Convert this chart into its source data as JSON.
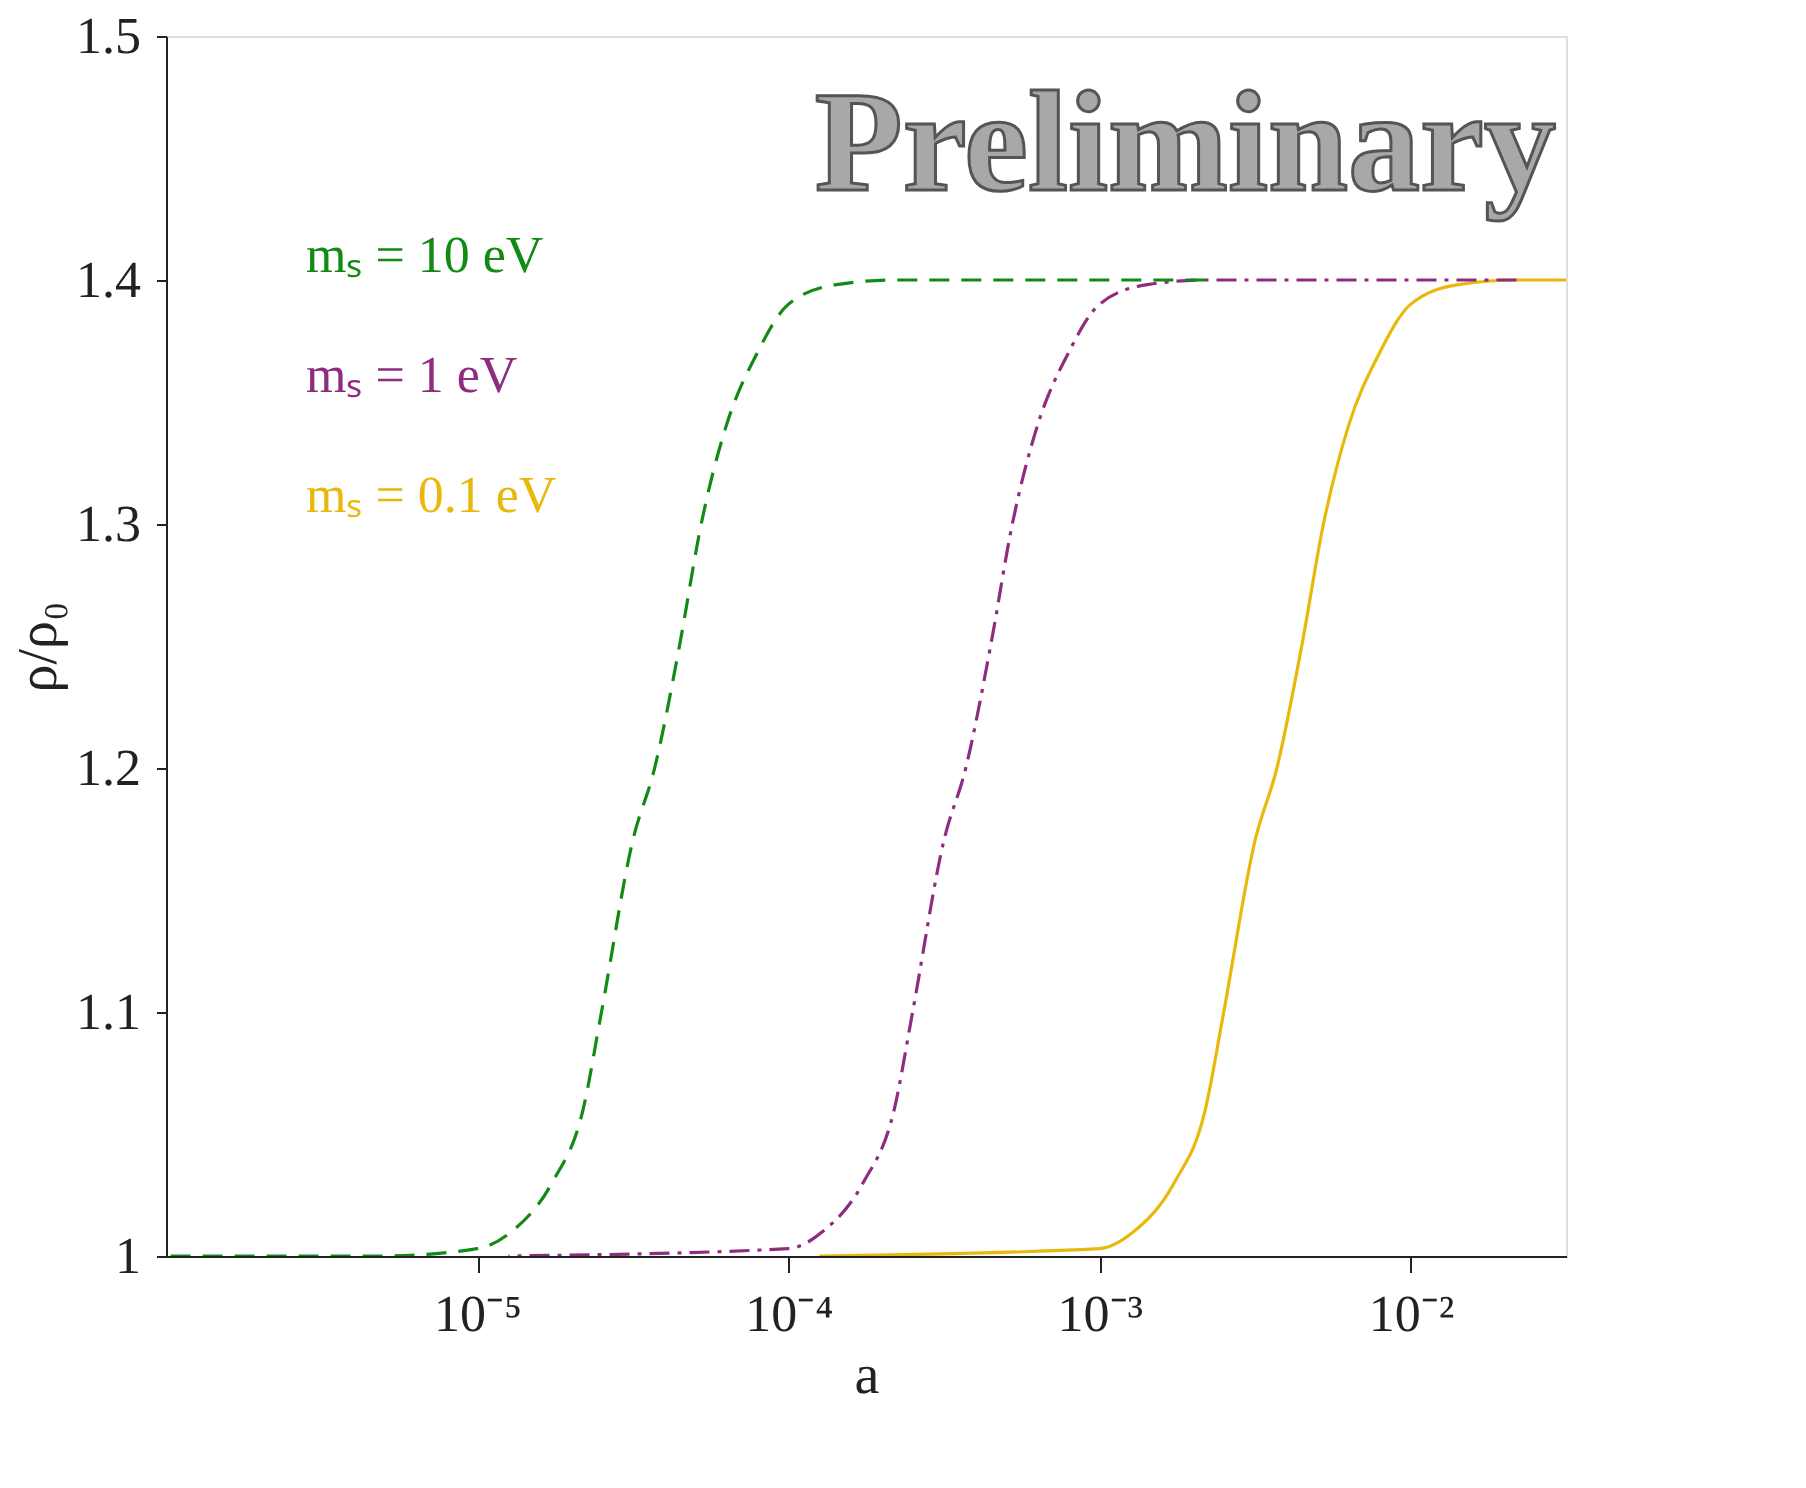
{
  "chart_data": {
    "type": "line",
    "xlabel": "a",
    "ylabel": "ρ/ρ₀",
    "log": "x",
    "xlim": [
      1e-06,
      0.0316
    ],
    "xticks": [
      {
        "value": 1e-05,
        "label": "10⁻⁵"
      },
      {
        "value": 0.0001,
        "label": "10⁻⁴"
      },
      {
        "value": 0.001,
        "label": "10⁻³"
      },
      {
        "value": 0.01,
        "label": "10⁻²"
      }
    ],
    "ylim": [
      1,
      1.5
    ],
    "yticks": [
      1,
      1.1,
      1.2,
      1.3,
      1.4,
      1.5
    ],
    "grid": false,
    "legend": "top left",
    "annotations": [
      "Preliminary"
    ],
    "series": [
      {
        "name": "mₛ = 10  eV",
        "color": "#138a13",
        "line_style": "dashed",
        "x": [
          1e-06,
          5e-06,
          1e-05,
          1.29e-05,
          1.74e-05,
          2.19e-05,
          2.51e-05,
          3.16e-05,
          3.72e-05,
          4.47e-05,
          5.25e-05,
          6.31e-05,
          7.94e-05,
          0.0001,
          0.000141,
          0.000219,
          0.00219
        ],
        "values": [
          1.0,
          1.0,
          1.003,
          1.01,
          1.03,
          1.06,
          1.1,
          1.17,
          1.2,
          1.25,
          1.3,
          1.34,
          1.37,
          1.39,
          1.398,
          1.4,
          1.4
        ]
      },
      {
        "name": "mₛ = 1  eV",
        "color": "#8e2c80",
        "line_style": "dashdot",
        "x": [
          1.26e-05,
          0.0001,
          0.000129,
          0.000174,
          0.000219,
          0.000251,
          0.000316,
          0.000372,
          0.000447,
          0.000525,
          0.000631,
          0.000794,
          0.001,
          0.00141,
          0.00219,
          0.0219
        ],
        "values": [
          1.0,
          1.003,
          1.01,
          1.03,
          1.06,
          1.1,
          1.17,
          1.2,
          1.25,
          1.3,
          1.34,
          1.37,
          1.39,
          1.398,
          1.4,
          1.4
        ]
      },
      {
        "name": "mₛ = 0.1  eV",
        "color": "#e8b90c",
        "line_style": "solid",
        "x": [
          0.000126,
          0.001,
          0.00129,
          0.00174,
          0.00219,
          0.00251,
          0.00316,
          0.00372,
          0.00447,
          0.00525,
          0.00631,
          0.00794,
          0.01,
          0.0141,
          0.0219,
          0.0316
        ],
        "values": [
          1.0,
          1.003,
          1.01,
          1.03,
          1.06,
          1.1,
          1.17,
          1.2,
          1.25,
          1.3,
          1.34,
          1.37,
          1.39,
          1.398,
          1.4,
          1.4
        ]
      }
    ]
  }
}
